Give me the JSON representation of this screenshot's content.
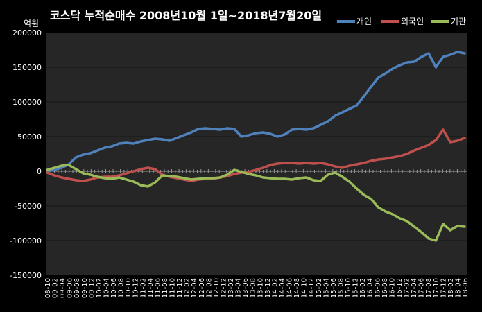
{
  "chart_data": {
    "type": "line",
    "title": "코스닥 누적순매수 2008년10월 1일~2018년7월20일",
    "ylabel": "억원",
    "xlabel": "",
    "ylim": [
      -150000,
      200000
    ],
    "yticks": [
      200000,
      150000,
      100000,
      50000,
      0,
      -50000,
      -100000,
      -150000
    ],
    "xticks": [
      "08-10",
      "09-02",
      "09-04",
      "09-06",
      "09-08",
      "09-10",
      "09-12",
      "10-02",
      "10-04",
      "10-06",
      "10-08",
      "10-10",
      "10-12",
      "11-02",
      "11-04",
      "11-06",
      "11-08",
      "11-10",
      "11-12",
      "12-02",
      "12-04",
      "12-06",
      "12-08",
      "12-10",
      "12-12",
      "13-02",
      "13-04",
      "13-06",
      "13-08",
      "13-10",
      "13-12",
      "14-02",
      "14-04",
      "14-06",
      "14-08",
      "14-10",
      "14-12",
      "15-02",
      "15-04",
      "15-06",
      "15-08",
      "15-10",
      "15-12",
      "16-02",
      "16-04",
      "16-06",
      "16-08",
      "16-10",
      "16-12",
      "17-02",
      "17-04",
      "17-06",
      "17-08",
      "17-10",
      "17-12",
      "18-02",
      "18-04",
      "18-06"
    ],
    "legend_position": "top-right",
    "grid": "horizontal",
    "series": [
      {
        "name": "개인",
        "color": "#4F81BD",
        "values": [
          0,
          2000,
          5000,
          10000,
          20000,
          24000,
          26000,
          30000,
          34000,
          36000,
          40000,
          41000,
          40000,
          43000,
          45000,
          47000,
          46000,
          44000,
          48000,
          52000,
          56000,
          61000,
          62000,
          61000,
          60000,
          62000,
          61000,
          50000,
          52000,
          55000,
          56000,
          54000,
          50000,
          53000,
          60000,
          61000,
          60000,
          62000,
          67000,
          72000,
          80000,
          85000,
          90000,
          95000,
          108000,
          122000,
          135000,
          141000,
          148000,
          153000,
          157000,
          158000,
          165000,
          170000,
          150000,
          165000,
          168000,
          172000,
          170000
        ]
      },
      {
        "name": "외국인",
        "color": "#C0504D",
        "values": [
          -2000,
          -6000,
          -9000,
          -11000,
          -13000,
          -14000,
          -12000,
          -9000,
          -8000,
          -8000,
          -6000,
          -3000,
          0,
          3000,
          5000,
          3000,
          -5000,
          -8000,
          -10000,
          -12000,
          -14000,
          -12000,
          -11000,
          -11000,
          -9000,
          -7000,
          -4000,
          -2000,
          -1000,
          2000,
          5000,
          9000,
          11000,
          12000,
          12000,
          11000,
          12000,
          11000,
          12000,
          10000,
          7000,
          5000,
          8000,
          10000,
          12000,
          15000,
          17000,
          18000,
          20000,
          22000,
          25000,
          30000,
          34000,
          38000,
          45000,
          60000,
          42000,
          44000,
          48000
        ]
      },
      {
        "name": "기관",
        "color": "#9BBB59",
        "values": [
          2000,
          5000,
          8000,
          9000,
          3000,
          -3000,
          -5000,
          -8000,
          -10000,
          -11000,
          -9000,
          -12000,
          -15000,
          -20000,
          -22000,
          -16000,
          -6000,
          -7000,
          -8000,
          -10000,
          -12000,
          -11000,
          -10000,
          -10000,
          -9000,
          -5000,
          2000,
          -1000,
          -4000,
          -6000,
          -9000,
          -10000,
          -11000,
          -11000,
          -12000,
          -10000,
          -9000,
          -13000,
          -14000,
          -5000,
          -2000,
          -8000,
          -15000,
          -25000,
          -34000,
          -40000,
          -52000,
          -58000,
          -62000,
          -68000,
          -72000,
          -80000,
          -88000,
          -97000,
          -100000,
          -76000,
          -85000,
          -79000,
          -80000
        ]
      }
    ]
  }
}
